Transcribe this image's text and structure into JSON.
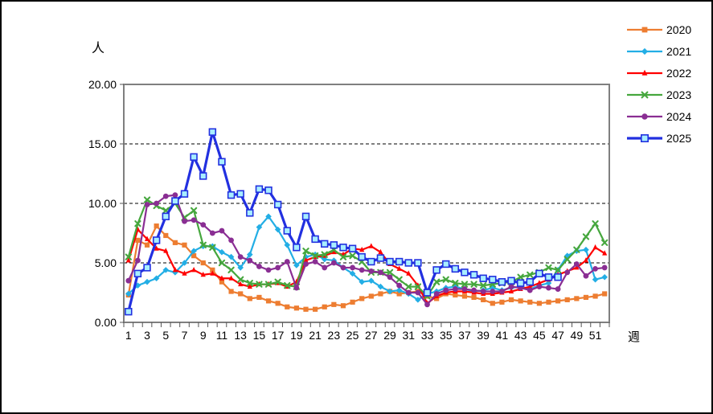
{
  "chart": {
    "unit_y_label": "人",
    "unit_x_label": "週"
  },
  "chart_data": {
    "type": "line",
    "title": "",
    "xlabel": "週",
    "ylabel": "人",
    "ylim": [
      0,
      20
    ],
    "y_tick_step": 5,
    "y_tick_labels": [
      "0.00",
      "5.00",
      "10.00",
      "15.00",
      "20.00"
    ],
    "x": [
      1,
      2,
      3,
      4,
      5,
      6,
      7,
      8,
      9,
      10,
      11,
      12,
      13,
      14,
      15,
      16,
      17,
      18,
      19,
      20,
      21,
      22,
      23,
      24,
      25,
      26,
      27,
      28,
      29,
      30,
      31,
      32,
      33,
      34,
      35,
      36,
      37,
      38,
      39,
      40,
      41,
      42,
      43,
      44,
      45,
      46,
      47,
      48,
      49,
      50,
      51,
      52
    ],
    "x_tick_labels": [
      1,
      3,
      5,
      7,
      9,
      11,
      13,
      15,
      17,
      19,
      21,
      23,
      25,
      27,
      29,
      31,
      33,
      35,
      37,
      39,
      41,
      43,
      45,
      47,
      49,
      51
    ],
    "grid": "horizontal dashed at 5,10,15; solid gray frame",
    "legend_position": "right-outside",
    "series": [
      {
        "name": "2020",
        "color": "#ED7D31",
        "marker": "square",
        "values": [
          2.3,
          6.9,
          6.5,
          8.1,
          7.3,
          6.7,
          6.5,
          5.6,
          5.0,
          4.4,
          3.4,
          2.6,
          2.4,
          2.0,
          2.1,
          1.8,
          1.6,
          1.3,
          1.2,
          1.1,
          1.1,
          1.3,
          1.5,
          1.4,
          1.7,
          2.0,
          2.2,
          2.4,
          2.6,
          2.4,
          2.5,
          2.6,
          2.2,
          2.0,
          2.4,
          2.3,
          2.2,
          2.1,
          1.9,
          1.6,
          1.7,
          1.9,
          1.8,
          1.7,
          1.6,
          1.7,
          1.8,
          1.9,
          2.0,
          2.1,
          2.2,
          2.4
        ]
      },
      {
        "name": "2021",
        "color": "#23AEE5",
        "marker": "diamond",
        "values": [
          2.4,
          3.1,
          3.4,
          3.7,
          4.4,
          4.2,
          5.0,
          6.0,
          6.4,
          6.4,
          5.9,
          5.5,
          4.6,
          5.7,
          8.0,
          8.9,
          7.8,
          6.5,
          4.8,
          5.5,
          5.7,
          5.3,
          5.2,
          4.6,
          4.1,
          3.4,
          3.5,
          3.0,
          2.6,
          2.7,
          2.4,
          1.9,
          2.4,
          2.6,
          2.9,
          3.0,
          2.8,
          2.6,
          2.7,
          2.9,
          2.7,
          2.9,
          3.0,
          2.8,
          3.1,
          3.3,
          4.4,
          5.6,
          6.0,
          6.1,
          3.6,
          3.8
        ]
      },
      {
        "name": "2022",
        "color": "#FF0000",
        "marker": "triangle",
        "values": [
          5.2,
          7.8,
          7.0,
          6.2,
          6.0,
          4.4,
          4.1,
          4.4,
          4.0,
          4.1,
          3.7,
          3.7,
          3.2,
          3.0,
          3.2,
          3.2,
          3.3,
          3.0,
          3.4,
          5.2,
          5.5,
          5.6,
          5.9,
          5.7,
          6.2,
          6.1,
          6.4,
          5.9,
          4.9,
          4.5,
          4.1,
          3.1,
          1.6,
          2.2,
          2.5,
          2.6,
          2.6,
          2.5,
          2.4,
          2.4,
          2.5,
          2.6,
          2.8,
          3.0,
          3.3,
          3.6,
          4.0,
          4.3,
          4.6,
          5.2,
          6.3,
          5.8
        ]
      },
      {
        "name": "2023",
        "color": "#46A73E",
        "marker": "x",
        "values": [
          5.5,
          8.3,
          10.3,
          9.8,
          9.4,
          10.0,
          8.8,
          9.4,
          6.5,
          6.3,
          5.0,
          4.4,
          3.6,
          3.3,
          3.2,
          3.2,
          3.4,
          3.1,
          3.0,
          6.0,
          5.6,
          5.7,
          6.1,
          5.5,
          5.6,
          5.1,
          4.2,
          4.2,
          4.2,
          3.6,
          3.0,
          3.0,
          2.2,
          3.4,
          3.6,
          3.3,
          3.2,
          3.2,
          3.1,
          3.2,
          3.3,
          3.4,
          3.8,
          4.0,
          4.2,
          4.6,
          4.4,
          5.3,
          6.1,
          7.2,
          8.3,
          6.7
        ]
      },
      {
        "name": "2024",
        "color": "#8A2E93",
        "marker": "circle",
        "values": [
          3.5,
          5.2,
          9.9,
          10.0,
          10.6,
          10.7,
          8.5,
          8.6,
          8.2,
          7.5,
          7.7,
          6.9,
          5.5,
          5.2,
          4.7,
          4.4,
          4.6,
          5.1,
          2.9,
          4.9,
          5.1,
          4.6,
          5.0,
          4.6,
          4.6,
          4.4,
          4.3,
          4.2,
          3.8,
          3.1,
          2.5,
          2.5,
          1.5,
          2.4,
          2.7,
          2.8,
          2.8,
          2.7,
          2.6,
          2.6,
          2.6,
          3.0,
          2.9,
          2.7,
          3.0,
          2.9,
          2.8,
          4.2,
          4.9,
          3.9,
          4.5,
          4.6
        ]
      },
      {
        "name": "2025",
        "color": "#2230E0",
        "marker": "open-square",
        "marker_fill": "#A8EEFF",
        "line_width": 3.2,
        "values": [
          0.9,
          4.1,
          4.6,
          6.9,
          8.9,
          10.2,
          10.8,
          13.9,
          12.3,
          16.0,
          13.5,
          10.7,
          10.8,
          9.2,
          11.2,
          11.1,
          9.9,
          7.7,
          6.3,
          8.9,
          7.0,
          6.6,
          6.5,
          6.3,
          6.2,
          5.5,
          5.1,
          5.4,
          5.1,
          5.1,
          5.0,
          5.0,
          2.5,
          4.4,
          4.9,
          4.5,
          4.2,
          4.0,
          3.7,
          3.6,
          3.4,
          3.5,
          3.3,
          3.4,
          4.1,
          3.8,
          3.8
        ]
      }
    ]
  }
}
